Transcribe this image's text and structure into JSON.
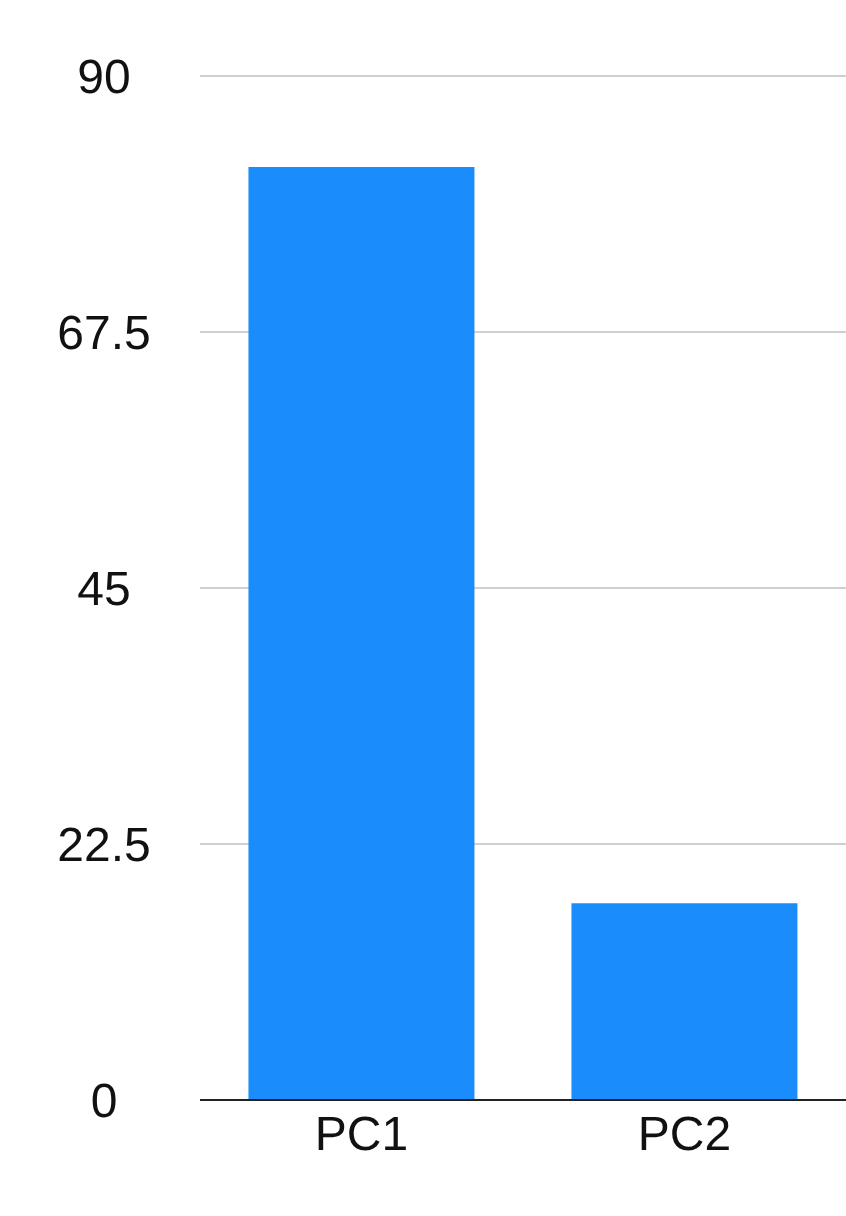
{
  "chart_data": {
    "type": "bar",
    "categories": [
      "PC1",
      "PC2"
    ],
    "values": [
      82,
      17.3
    ],
    "color": "#1a8cfb",
    "ylim": [
      0,
      90
    ],
    "yticks": [
      0,
      22.5,
      45,
      67.5,
      90
    ],
    "grid": "y"
  }
}
